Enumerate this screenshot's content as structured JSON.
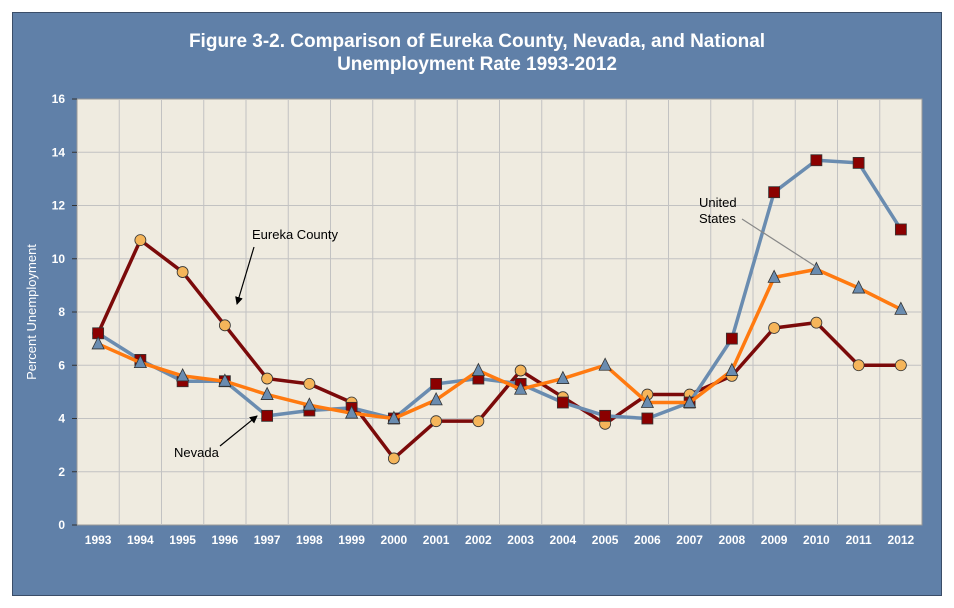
{
  "chart_data": {
    "type": "line",
    "title_line1": "Figure 3-2. Comparison of Eureka County, Nevada, and National",
    "title_line2": "Unemployment Rate 1993-2012",
    "ylabel": "Percent Unemployment",
    "xlabel": "",
    "ylim": [
      0,
      16
    ],
    "yticks": [
      0,
      2,
      4,
      6,
      8,
      10,
      12,
      14,
      16
    ],
    "grid": true,
    "x": [
      "1993",
      "1994",
      "1995",
      "1996",
      "1997",
      "1998",
      "1999",
      "2000",
      "2001",
      "2002",
      "2003",
      "2004",
      "2005",
      "2006",
      "2007",
      "2008",
      "2009",
      "2010",
      "2011",
      "2012"
    ],
    "series": [
      {
        "key": "eureka",
        "color": "#7b0a0a",
        "marker": "circle",
        "marker_fill": "#f5b55a",
        "values": [
          7.2,
          10.7,
          9.5,
          7.5,
          5.5,
          5.3,
          4.6,
          2.5,
          3.9,
          3.9,
          5.8,
          4.8,
          3.8,
          4.9,
          4.9,
          5.6,
          7.4,
          7.6,
          6.0,
          6.0
        ]
      },
      {
        "key": "nevada",
        "color": "#6a8cb0",
        "marker": "square",
        "marker_fill": "#8b0000",
        "values": [
          7.2,
          6.2,
          5.4,
          5.4,
          4.1,
          4.3,
          4.4,
          4.0,
          5.3,
          5.5,
          5.3,
          4.6,
          4.1,
          4.0,
          4.6,
          7.0,
          12.5,
          13.7,
          13.6,
          11.1
        ]
      },
      {
        "key": "us",
        "color": "#ff7a10",
        "marker": "triangle",
        "marker_fill": "#6a8cb0",
        "values": [
          6.8,
          6.1,
          5.6,
          5.4,
          4.9,
          4.5,
          4.2,
          4.0,
          4.7,
          5.8,
          5.1,
          5.5,
          6.0,
          4.6,
          4.6,
          5.8,
          9.3,
          9.6,
          8.9,
          8.1
        ]
      }
    ],
    "annotations": {
      "eureka": "Eureka County",
      "nevada": "Nevada",
      "us_line1": "United",
      "us_line2": "States"
    },
    "colors": {
      "frame": "#6080a8",
      "plot_bg": "#efebe0",
      "grid": "#c2c2c2"
    }
  }
}
